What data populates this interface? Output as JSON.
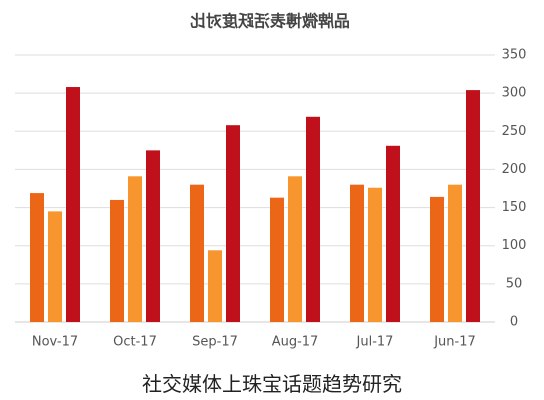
{
  "chart_data": {
    "type": "bar",
    "title": "品牌微博表活跃度对比",
    "categories": [
      "Jun-17",
      "Jul-17",
      "Aug-17",
      "Sep-17",
      "Oct-17",
      "Nov-17"
    ],
    "series": [
      {
        "color": "#c0101c",
        "values": [
          304,
          231,
          269,
          258,
          225,
          308
        ]
      },
      {
        "color": "#f7952f",
        "values": [
          180,
          176,
          191,
          94,
          191,
          145
        ]
      },
      {
        "color": "#ec6617",
        "values": [
          164,
          180,
          163,
          180,
          160,
          169
        ]
      }
    ],
    "ylim": [
      0,
      350
    ],
    "yticks": [
      0,
      50,
      100,
      150,
      200,
      250,
      300,
      350
    ],
    "grid": true
  },
  "caption": "社交媒体上珠宝话题趋势研究"
}
